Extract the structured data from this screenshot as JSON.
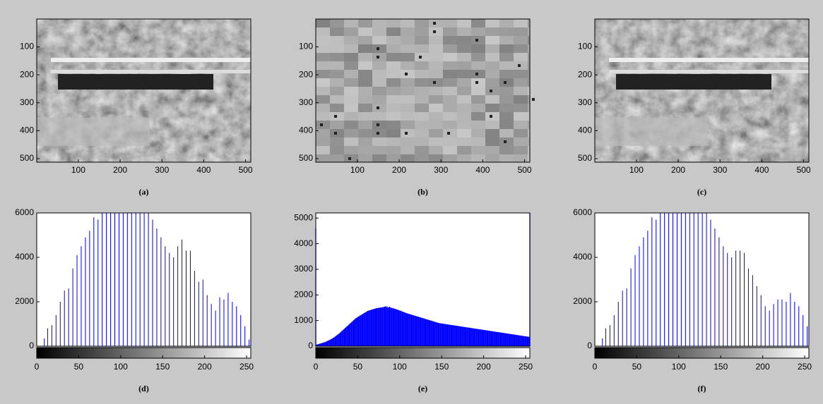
{
  "chart_data": [
    {
      "type": "image",
      "xlabel": "(a)",
      "xlim": [
        0.5,
        512.5
      ],
      "ylim": [
        0.5,
        512.5
      ],
      "xticks": [
        100,
        200,
        300,
        400,
        500
      ],
      "yticks": [
        100,
        200,
        300,
        400,
        500
      ]
    },
    {
      "type": "image",
      "xlabel": "(b)",
      "xlim": [
        0.5,
        512.5
      ],
      "ylim": [
        0.5,
        512.5
      ],
      "xticks": [
        100,
        200,
        300,
        400,
        500
      ],
      "yticks": [
        100,
        200,
        300,
        400,
        500
      ]
    },
    {
      "type": "image",
      "xlabel": "(c)",
      "xlim": [
        0.5,
        512.5
      ],
      "ylim": [
        0.5,
        512.5
      ],
      "xticks": [
        100,
        200,
        300,
        400,
        500
      ],
      "yticks": [
        100,
        200,
        300,
        400,
        500
      ]
    },
    {
      "type": "histogram",
      "xlabel": "(d)",
      "color": "#0000ff",
      "xlim": [
        0,
        255
      ],
      "ylim": [
        0,
        6000
      ],
      "xticks": [
        0,
        50,
        100,
        150,
        200,
        250
      ],
      "yticks": [
        0,
        2000,
        4000,
        6000
      ],
      "x": [
        0,
        9,
        13,
        18,
        23,
        28,
        33,
        38,
        43,
        48,
        53,
        58,
        63,
        68,
        73,
        78,
        83,
        88,
        93,
        98,
        103,
        108,
        113,
        118,
        123,
        128,
        133,
        138,
        143,
        148,
        153,
        158,
        163,
        168,
        173,
        178,
        183,
        188,
        193,
        198,
        203,
        208,
        213,
        218,
        223,
        228,
        233,
        238,
        243,
        248,
        253,
        255
      ],
      "values": [
        1500,
        350,
        800,
        950,
        1400,
        2000,
        2500,
        2600,
        3500,
        4100,
        4500,
        4900,
        5200,
        5800,
        5700,
        6000,
        6000,
        6000,
        6000,
        6000,
        6000,
        6000,
        6000,
        6000,
        6000,
        6000,
        6000,
        5700,
        5300,
        4900,
        4500,
        4200,
        4000,
        4500,
        4800,
        4300,
        4300,
        3400,
        2900,
        3000,
        2300,
        1900,
        1600,
        2200,
        2100,
        2400,
        2000,
        1800,
        1400,
        900,
        300,
        300
      ]
    },
    {
      "type": "histogram",
      "xlabel": "(e)",
      "color": "#0000ff",
      "xlim": [
        0,
        255
      ],
      "ylim": [
        0,
        5200
      ],
      "xticks": [
        0,
        50,
        100,
        150,
        200,
        250
      ],
      "yticks": [
        0,
        1000,
        2000,
        3000,
        4000,
        5000
      ],
      "x": [
        0,
        1,
        2,
        3,
        4,
        5,
        6,
        7,
        8,
        9,
        10,
        11,
        12,
        13,
        14,
        15,
        16,
        17,
        18,
        19,
        20,
        21,
        22,
        23,
        24,
        25,
        26,
        27,
        28,
        29,
        30,
        31,
        32,
        33,
        34,
        35,
        36,
        37,
        38,
        39,
        40,
        41,
        42,
        43,
        44,
        45,
        46,
        47,
        48,
        49,
        50,
        51,
        52,
        53,
        54,
        55,
        56,
        57,
        58,
        59,
        60,
        61,
        62,
        63,
        64,
        65,
        66,
        67,
        68,
        69,
        70,
        71,
        72,
        73,
        74,
        75,
        76,
        77,
        78,
        79,
        80,
        81,
        82,
        83,
        84,
        85,
        86,
        87,
        88,
        89,
        90,
        91,
        92,
        93,
        94,
        95,
        96,
        97,
        98,
        99,
        100,
        101,
        102,
        103,
        104,
        105,
        106,
        107,
        108,
        109,
        110,
        111,
        112,
        113,
        114,
        115,
        116,
        117,
        118,
        119,
        120,
        121,
        122,
        123,
        124,
        125,
        126,
        127,
        128,
        129,
        130,
        131,
        132,
        133,
        134,
        135,
        136,
        137,
        138,
        139,
        140,
        141,
        142,
        143,
        144,
        145,
        146,
        147,
        148,
        149,
        150,
        151,
        152,
        153,
        154,
        155,
        156,
        157,
        158,
        159,
        160,
        161,
        162,
        163,
        164,
        165,
        166,
        167,
        168,
        169,
        170,
        171,
        172,
        173,
        174,
        175,
        176,
        177,
        178,
        179,
        180,
        181,
        182,
        183,
        184,
        185,
        186,
        187,
        188,
        189,
        190,
        191,
        192,
        193,
        194,
        195,
        196,
        197,
        198,
        199,
        200,
        201,
        202,
        203,
        204,
        205,
        206,
        207,
        208,
        209,
        210,
        211,
        212,
        213,
        214,
        215,
        216,
        217,
        218,
        219,
        220,
        221,
        222,
        223,
        224,
        225,
        226,
        227,
        228,
        229,
        230,
        231,
        232,
        233,
        234,
        235,
        236,
        237,
        238,
        239,
        240,
        241,
        242,
        243,
        244,
        245,
        246,
        247,
        248,
        249,
        250,
        251,
        252,
        253,
        254,
        255
      ],
      "values": [
        4600,
        60,
        70,
        80,
        90,
        100,
        110,
        120,
        130,
        140,
        150,
        160,
        175,
        190,
        205,
        220,
        235,
        250,
        270,
        290,
        310,
        330,
        350,
        375,
        400,
        425,
        450,
        475,
        500,
        530,
        560,
        590,
        620,
        650,
        680,
        710,
        740,
        770,
        800,
        830,
        860,
        890,
        920,
        950,
        980,
        1010,
        1040,
        1070,
        1100,
        1120,
        1140,
        1160,
        1180,
        1200,
        1220,
        1240,
        1260,
        1280,
        1300,
        1320,
        1340,
        1360,
        1380,
        1390,
        1400,
        1410,
        1420,
        1430,
        1440,
        1450,
        1460,
        1470,
        1480,
        1490,
        1490,
        1500,
        1500,
        1510,
        1510,
        1520,
        1520,
        1530,
        1540,
        1560,
        1530,
        1550,
        1500,
        1520,
        1540,
        1510,
        1500,
        1480,
        1490,
        1470,
        1460,
        1450,
        1440,
        1430,
        1420,
        1400,
        1390,
        1380,
        1370,
        1350,
        1340,
        1330,
        1320,
        1300,
        1290,
        1280,
        1270,
        1260,
        1250,
        1240,
        1230,
        1220,
        1210,
        1200,
        1190,
        1180,
        1170,
        1160,
        1150,
        1140,
        1130,
        1120,
        1110,
        1100,
        1090,
        1080,
        1070,
        1060,
        1050,
        1040,
        1030,
        1020,
        1010,
        1000,
        990,
        980,
        970,
        960,
        950,
        940,
        930,
        920,
        910,
        900,
        895,
        890,
        885,
        880,
        875,
        870,
        865,
        860,
        855,
        850,
        845,
        840,
        835,
        830,
        825,
        820,
        815,
        810,
        805,
        800,
        795,
        790,
        785,
        780,
        775,
        770,
        765,
        760,
        755,
        750,
        745,
        740,
        735,
        730,
        725,
        720,
        715,
        710,
        705,
        700,
        695,
        690,
        685,
        680,
        675,
        670,
        665,
        660,
        655,
        650,
        645,
        640,
        635,
        630,
        625,
        620,
        615,
        610,
        605,
        600,
        595,
        590,
        585,
        580,
        575,
        570,
        565,
        560,
        555,
        550,
        545,
        540,
        535,
        530,
        525,
        520,
        515,
        510,
        505,
        500,
        495,
        490,
        485,
        480,
        475,
        470,
        465,
        460,
        455,
        450,
        445,
        440,
        435,
        430,
        425,
        420,
        415,
        410,
        405,
        400,
        395,
        390,
        385,
        380,
        375,
        370,
        365,
        5200
      ]
    },
    {
      "type": "histogram",
      "xlabel": "(f)",
      "color": "#0000ff",
      "xlim": [
        0,
        255
      ],
      "ylim": [
        0,
        6000
      ],
      "xticks": [
        0,
        50,
        100,
        150,
        200,
        250
      ],
      "yticks": [
        0,
        2000,
        4000,
        6000
      ],
      "x": [
        0,
        9,
        13,
        18,
        23,
        28,
        33,
        38,
        43,
        48,
        53,
        58,
        63,
        68,
        73,
        78,
        83,
        88,
        93,
        98,
        103,
        108,
        113,
        118,
        123,
        128,
        133,
        138,
        143,
        148,
        153,
        158,
        163,
        168,
        173,
        178,
        183,
        188,
        193,
        198,
        203,
        208,
        213,
        218,
        223,
        228,
        233,
        238,
        243,
        248,
        253,
        255
      ],
      "values": [
        1500,
        350,
        800,
        950,
        1400,
        2000,
        2500,
        2600,
        3500,
        4100,
        4500,
        4900,
        5200,
        5800,
        5700,
        6000,
        6000,
        6000,
        6000,
        6000,
        6000,
        6000,
        6000,
        6000,
        6000,
        6000,
        6000,
        5700,
        5300,
        4900,
        4500,
        4200,
        4000,
        4300,
        4300,
        4200,
        3500,
        3200,
        2700,
        2300,
        1800,
        1600,
        1900,
        2100,
        2100,
        2000,
        2400,
        2000,
        1800,
        1400,
        900,
        300
      ]
    }
  ]
}
